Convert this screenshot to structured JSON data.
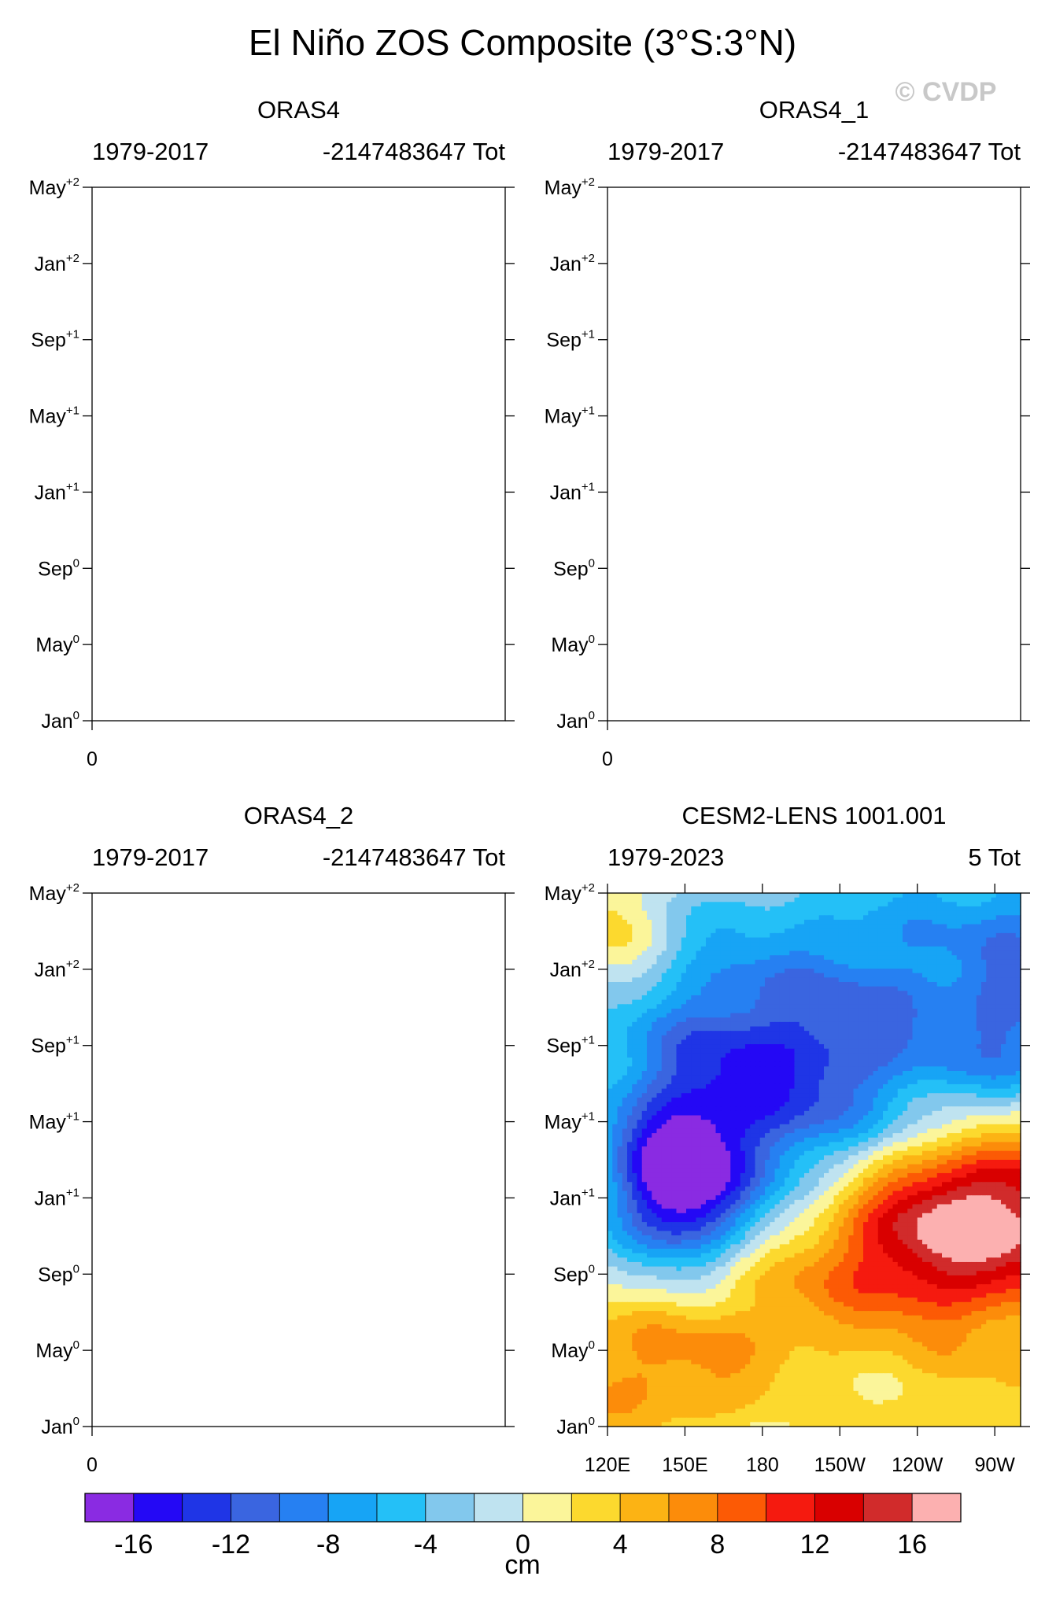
{
  "figure": {
    "title": "El Niño ZOS Composite (3°S:3°N)",
    "watermark": "© CVDP",
    "colorbar_unit": "cm"
  },
  "chart_data": [
    {
      "type": "heatmap",
      "title": "ORAS4",
      "left_label": "1979-2017",
      "right_label": "-2147483647 Tot",
      "y_ticks": [
        {
          "mon": "May",
          "sup": "+2"
        },
        {
          "mon": "Jan",
          "sup": "+2"
        },
        {
          "mon": "Sep",
          "sup": "+1"
        },
        {
          "mon": "May",
          "sup": "+1"
        },
        {
          "mon": "Jan",
          "sup": "+1"
        },
        {
          "mon": "Sep",
          "sup": "0"
        },
        {
          "mon": "May",
          "sup": "0"
        },
        {
          "mon": "Jan",
          "sup": "0"
        }
      ],
      "x_ticks": [
        "0"
      ],
      "data": "empty (no data plotted)"
    },
    {
      "type": "heatmap",
      "title": "ORAS4_1",
      "left_label": "1979-2017",
      "right_label": "-2147483647 Tot",
      "y_ticks": [
        {
          "mon": "May",
          "sup": "+2"
        },
        {
          "mon": "Jan",
          "sup": "+2"
        },
        {
          "mon": "Sep",
          "sup": "+1"
        },
        {
          "mon": "May",
          "sup": "+1"
        },
        {
          "mon": "Jan",
          "sup": "+1"
        },
        {
          "mon": "Sep",
          "sup": "0"
        },
        {
          "mon": "May",
          "sup": "0"
        },
        {
          "mon": "Jan",
          "sup": "0"
        }
      ],
      "x_ticks": [
        "0"
      ],
      "data": "empty (no data plotted)"
    },
    {
      "type": "heatmap",
      "title": "ORAS4_2",
      "left_label": "1979-2017",
      "right_label": "-2147483647 Tot",
      "y_ticks": [
        {
          "mon": "May",
          "sup": "+2"
        },
        {
          "mon": "Jan",
          "sup": "+2"
        },
        {
          "mon": "Sep",
          "sup": "+1"
        },
        {
          "mon": "May",
          "sup": "+1"
        },
        {
          "mon": "Jan",
          "sup": "+1"
        },
        {
          "mon": "Sep",
          "sup": "0"
        },
        {
          "mon": "May",
          "sup": "0"
        },
        {
          "mon": "Jan",
          "sup": "0"
        }
      ],
      "x_ticks": [
        "0"
      ],
      "data": "empty (no data plotted)"
    },
    {
      "type": "heatmap",
      "title": "CESM2-LENS 1001.001",
      "left_label": "1979-2023",
      "right_label": "5 Tot",
      "y_ticks": [
        {
          "mon": "May",
          "sup": "+2"
        },
        {
          "mon": "Jan",
          "sup": "+2"
        },
        {
          "mon": "Sep",
          "sup": "+1"
        },
        {
          "mon": "May",
          "sup": "+1"
        },
        {
          "mon": "Jan",
          "sup": "+1"
        },
        {
          "mon": "Sep",
          "sup": "0"
        },
        {
          "mon": "May",
          "sup": "0"
        },
        {
          "mon": "Jan",
          "sup": "0"
        }
      ],
      "x_ticks": [
        "120E",
        "150E",
        "180",
        "150W",
        "120W",
        "90W"
      ],
      "x_range_lon_east": [
        120,
        280
      ],
      "y_range_months": [
        0,
        28
      ],
      "data": "longitude-time Hovmoller of ZOS anomaly (cm): positive anomaly band tilting from western Pacific near Jan0 to eastern Pacific peaking ~14 cm near 110W around Oct0-Dec0; negative anomalies (~-14 cm) in western Pacific near Jan+1 spreading east by Jan+2"
    }
  ],
  "colorbar": {
    "levels": [
      "-16",
      "-12",
      "-8",
      "-4",
      "0",
      "4",
      "8",
      "12",
      "16"
    ],
    "colors": [
      "#8a2be2",
      "#2408f5",
      "#1f35e6",
      "#3a65e0",
      "#2680f2",
      "#17a4f5",
      "#24c0f7",
      "#82c8ed",
      "#bfe3f0",
      "#fbf59a",
      "#fcd92e",
      "#fcb314",
      "#fc8c0a",
      "#fc5a05",
      "#f51a0f",
      "#d90000",
      "#d12b2b",
      "#fcb0b0"
    ]
  }
}
